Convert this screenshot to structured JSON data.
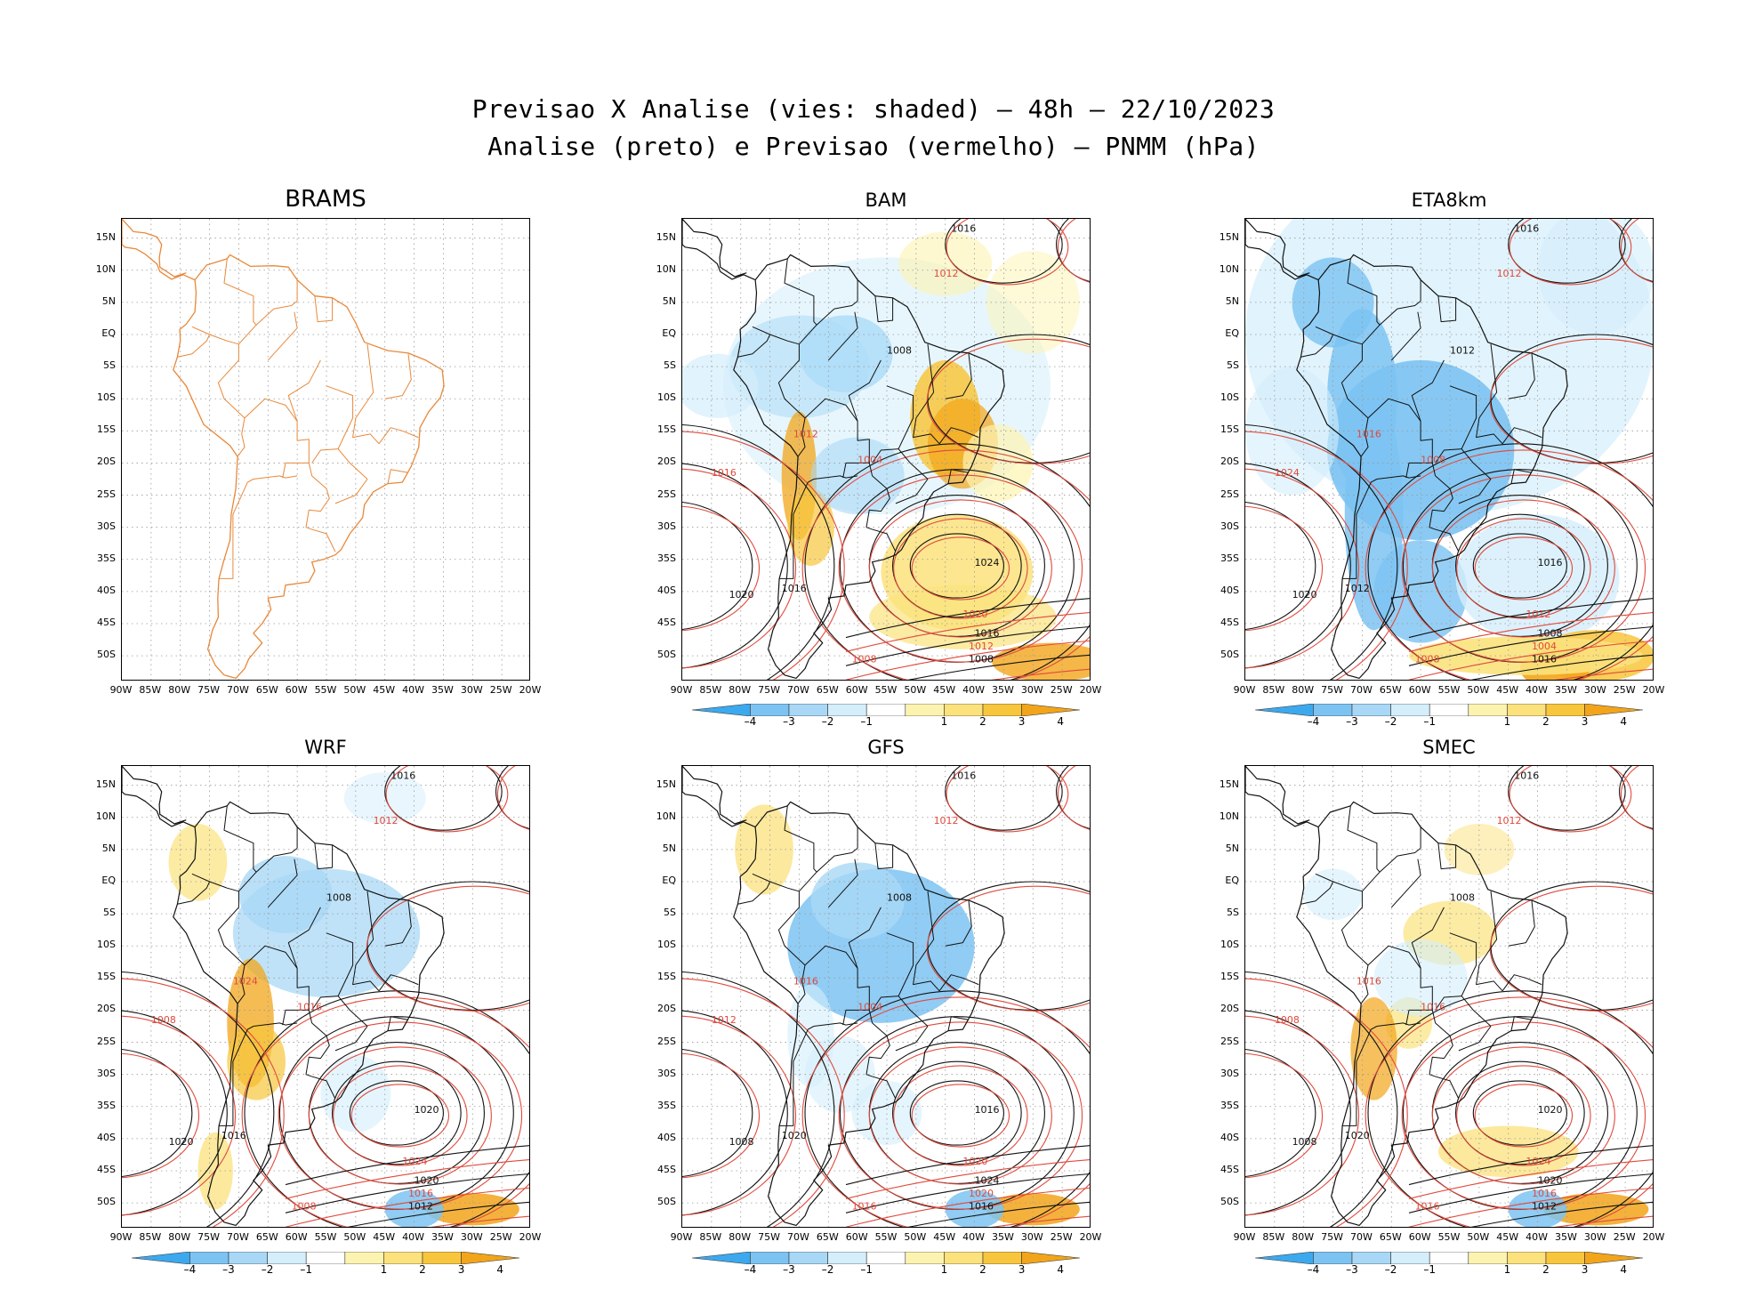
{
  "figure": {
    "title_line1": "Previsao X Analise (vies: shaded) – 48h – 22/10/2023",
    "title_line2": "Analise (preto) e Previsao (vermelho) – PNMM (hPa)"
  },
  "axes": {
    "lat_labels": [
      "15N",
      "10N",
      "5N",
      "EQ",
      "5S",
      "10S",
      "15S",
      "20S",
      "25S",
      "30S",
      "35S",
      "40S",
      "45S",
      "50S"
    ],
    "lon_labels": [
      "90W",
      "85W",
      "80W",
      "75W",
      "70W",
      "65W",
      "60W",
      "55W",
      "50W",
      "45W",
      "40W",
      "35W",
      "30W",
      "25W",
      "20W"
    ]
  },
  "colorbar": {
    "labels": [
      "–4",
      "–3",
      "–2",
      "–1",
      "1",
      "2",
      "3",
      "4"
    ],
    "colors": [
      "#3ca9ee",
      "#7cc3f2",
      "#a9d8f6",
      "#d4eefb",
      "#ffffff",
      "#fdf3b0",
      "#fbe27c",
      "#f8c63c",
      "#f2a51a"
    ]
  },
  "panels": [
    {
      "name": "BRAMS",
      "has_colorbar": false,
      "contour_labels": []
    },
    {
      "name": "BAM",
      "has_colorbar": true,
      "contour_labels": [
        "1016",
        "1012",
        "1008",
        "1004",
        "1024",
        "1020",
        "1016",
        "1012",
        "1008",
        "1016",
        "1020",
        "1012",
        "1016",
        "1008"
      ]
    },
    {
      "name": "ETA8km",
      "has_colorbar": true,
      "contour_labels": [
        "1016",
        "1012",
        "1012",
        "1008",
        "1016",
        "1012",
        "1008",
        "1004",
        "1016",
        "1024",
        "1020",
        "1016",
        "1012",
        "1008"
      ]
    },
    {
      "name": "WRF",
      "has_colorbar": true,
      "contour_labels": [
        "1016",
        "1012",
        "1008",
        "1016",
        "1020",
        "1024",
        "1020",
        "1016",
        "1012",
        "1008",
        "1020",
        "1024",
        "1016",
        "1008"
      ]
    },
    {
      "name": "GFS",
      "has_colorbar": true,
      "contour_labels": [
        "1016",
        "1012",
        "1008",
        "1004",
        "1016",
        "1020",
        "1024",
        "1020",
        "1016",
        "1012",
        "1008",
        "1016",
        "1020",
        "1016"
      ]
    },
    {
      "name": "SMEC",
      "has_colorbar": true,
      "contour_labels": [
        "1016",
        "1012",
        "1008",
        "1016",
        "1020",
        "1024",
        "1020",
        "1016",
        "1012",
        "1008",
        "1008",
        "1016",
        "1020",
        "1016"
      ]
    }
  ]
}
